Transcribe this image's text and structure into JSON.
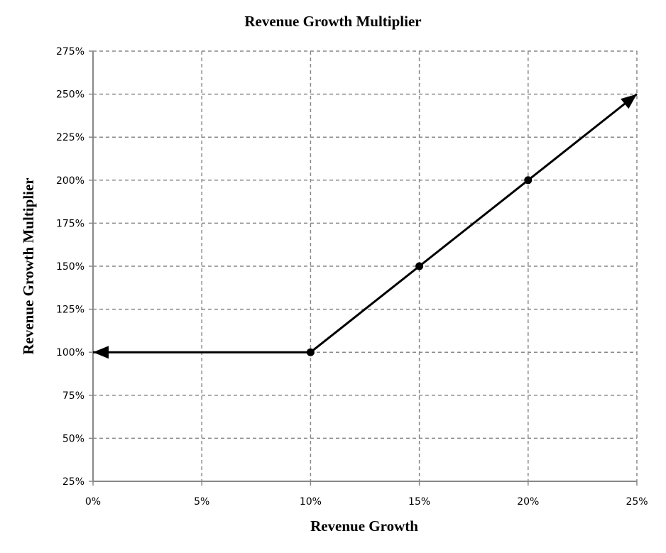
{
  "chart_data": {
    "type": "line",
    "title": "Revenue Growth Multiplier",
    "xlabel": "Revenue Growth",
    "ylabel": "Revenue Growth Multiplier",
    "xlim": [
      0,
      25
    ],
    "ylim": [
      25,
      275
    ],
    "x_ticks": [
      0,
      5,
      10,
      15,
      20,
      25
    ],
    "x_tick_labels": [
      "0%",
      "5%",
      "10%",
      "15%",
      "20%",
      "25%"
    ],
    "y_ticks": [
      25,
      50,
      75,
      100,
      125,
      150,
      175,
      200,
      225,
      250,
      275
    ],
    "y_tick_labels": [
      "25%",
      "50%",
      "75%",
      "100%",
      "125%",
      "150%",
      "175%",
      "200%",
      "225%",
      "250%",
      "275%"
    ],
    "grid": true,
    "series": [
      {
        "name": "Revenue Growth Multiplier",
        "color": "#000000",
        "line": [
          [
            0,
            100
          ],
          [
            10,
            100
          ],
          [
            15,
            150
          ],
          [
            20,
            200
          ],
          [
            25,
            250
          ]
        ],
        "markers": [
          [
            10,
            100
          ],
          [
            15,
            150
          ],
          [
            20,
            200
          ]
        ],
        "arrows_at": [
          [
            0,
            100
          ],
          [
            25,
            250
          ]
        ]
      }
    ]
  }
}
